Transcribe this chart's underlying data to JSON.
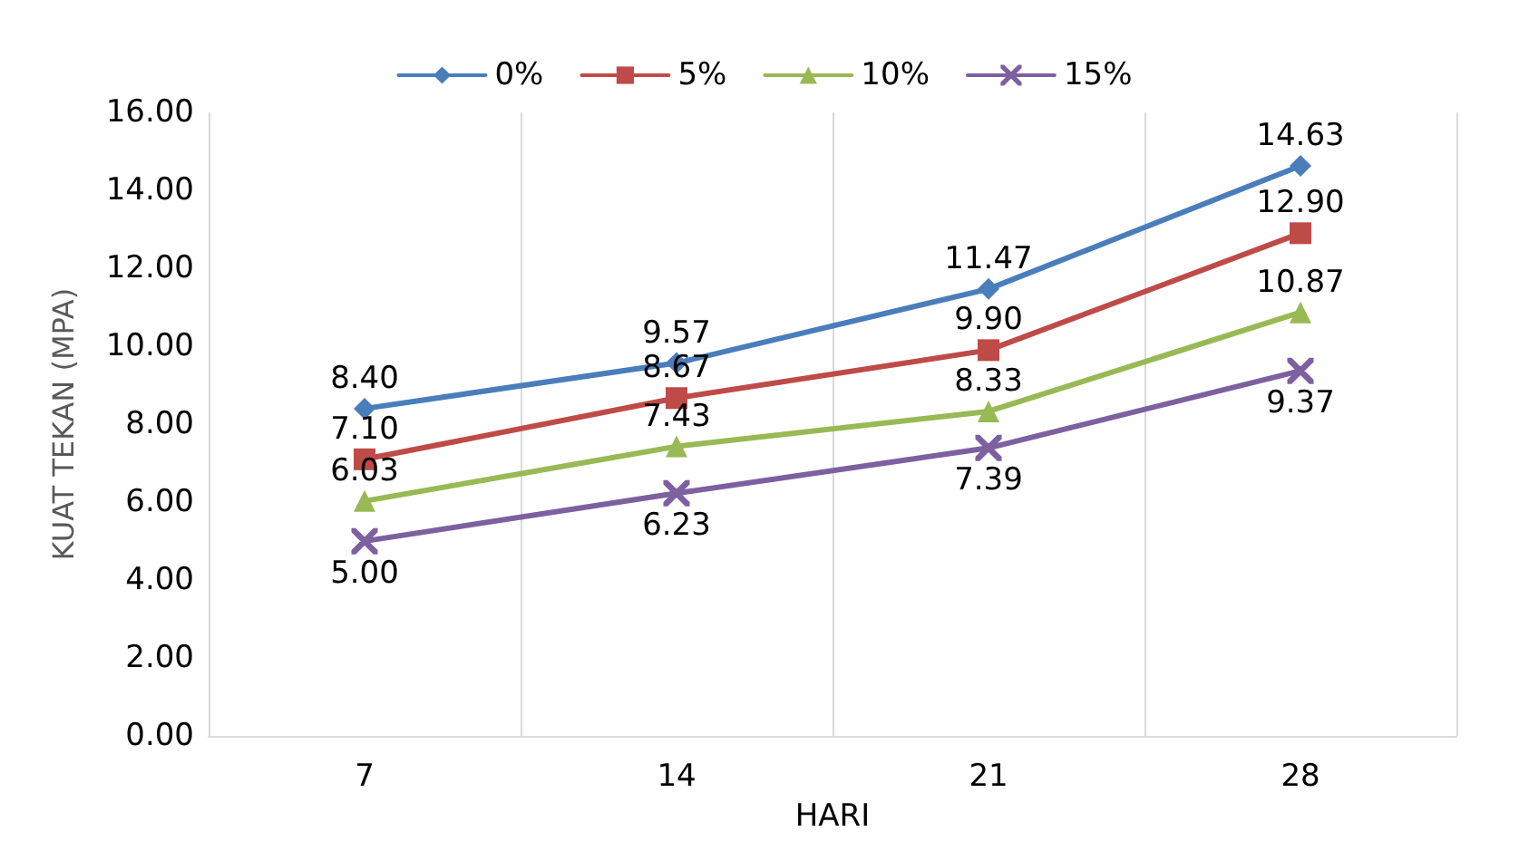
{
  "chart_data": {
    "type": "line",
    "xlabel": "HARI",
    "ylabel": "KUAT TEKAN (MPA)",
    "categories": [
      "7",
      "14",
      "21",
      "28"
    ],
    "series": [
      {
        "name": "0%",
        "color": "#4a7ebb",
        "marker": "diamond",
        "values": [
          8.4,
          9.57,
          11.47,
          14.63
        ],
        "value_labels": [
          "8.40",
          "9.57",
          "11.47",
          "14.63"
        ]
      },
      {
        "name": "5%",
        "color": "#be4b48",
        "marker": "square",
        "values": [
          7.1,
          8.67,
          9.9,
          12.9
        ],
        "value_labels": [
          "7.10",
          "8.67",
          "9.90",
          "12.90"
        ]
      },
      {
        "name": "10%",
        "color": "#98b954",
        "marker": "triangle",
        "values": [
          6.03,
          7.43,
          8.33,
          10.87
        ],
        "value_labels": [
          "6.03",
          "7.43",
          "8.33",
          "10.87"
        ]
      },
      {
        "name": "15%",
        "color": "#7d60a0",
        "marker": "cross",
        "values": [
          5.0,
          6.23,
          7.39,
          9.37
        ],
        "value_labels": [
          "5.00",
          "6.23",
          "7.39",
          "9.37"
        ]
      }
    ],
    "ylim": [
      0,
      16
    ],
    "yticks": [
      {
        "value": 0,
        "label": "0.00"
      },
      {
        "value": 2,
        "label": "2.00"
      },
      {
        "value": 4,
        "label": "4.00"
      },
      {
        "value": 6,
        "label": "6.00"
      },
      {
        "value": 8,
        "label": "8.00"
      },
      {
        "value": 10,
        "label": "10.00"
      },
      {
        "value": 12,
        "label": "12.00"
      },
      {
        "value": 14,
        "label": "14.00"
      },
      {
        "value": 16,
        "label": "16.00"
      }
    ],
    "grid": "x",
    "legend": "top",
    "line_style": "solid"
  }
}
